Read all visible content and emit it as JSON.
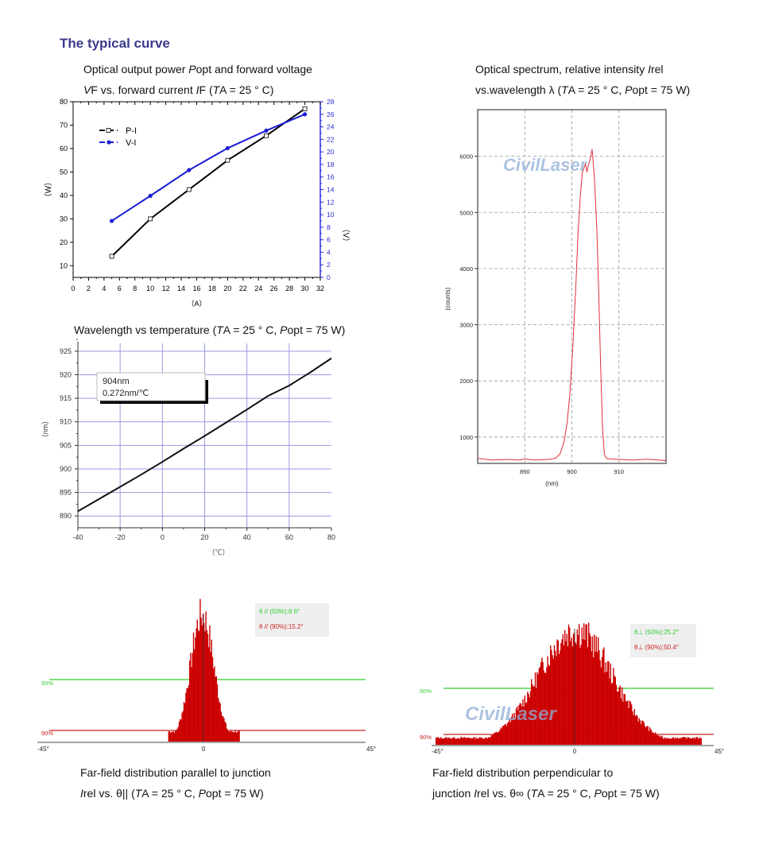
{
  "heading": "The typical curve",
  "watermark": "CivilLaser",
  "captions": {
    "pi_line1_a": "Optical output power ",
    "pi_line1_b": "P",
    "pi_line1_c": "opt and forward voltage",
    "pi_line2_a": "V",
    "pi_line2_b": "F vs. forward current ",
    "pi_line2_c": "I",
    "pi_line2_d": "F (",
    "pi_line2_e": "T",
    "pi_line2_f": "A = 25 ° C)",
    "spec_line1_a": "Optical spectrum, relative intensity ",
    "spec_line1_b": "I",
    "spec_line1_c": "rel",
    "spec_line2_a": "vs.wavelength λ (",
    "spec_line2_b": "T",
    "spec_line2_c": "A = 25 ° C, ",
    "spec_line2_d": "P",
    "spec_line2_e": "opt = 75 W)",
    "wl_a": "Wavelength vs temperature (",
    "wl_b": "T",
    "wl_c": "A = 25 ° C, ",
    "wl_d": "P",
    "wl_e": "opt = 75 W)",
    "par_line1": "Far-field distribution parallel to junction",
    "par_line2_a": "I",
    "par_line2_b": "rel vs. θ|| (",
    "par_line2_c": "T",
    "par_line2_d": "A = 25 ° C, ",
    "par_line2_e": "P",
    "par_line2_f": "opt = 75 W)",
    "perp_line1": "Far-field distribution perpendicular to",
    "perp_line2_a": "junction ",
    "perp_line2_b": "I",
    "perp_line2_c": "rel vs. θ∞ (",
    "perp_line2_d": "T",
    "perp_line2_e": "A = 25 ° C, ",
    "perp_line2_f": "P",
    "perp_line2_g": "opt = 75 W)"
  },
  "chart_data": [
    {
      "id": "pi",
      "type": "line",
      "title": "Optical output power Popt and forward voltage VF vs. forward current IF (TA = 25 ° C)",
      "xlabel": "（A）",
      "ylabel": "（W）",
      "y2label": "（V）",
      "xlim": [
        0,
        32
      ],
      "ylim": [
        5,
        80
      ],
      "y2lim": [
        0,
        28
      ],
      "xticks": [
        0,
        2,
        4,
        6,
        8,
        10,
        12,
        14,
        16,
        18,
        20,
        22,
        24,
        26,
        28,
        30,
        32
      ],
      "yticks": [
        10,
        20,
        30,
        40,
        50,
        60,
        70,
        80
      ],
      "y2ticks": [
        0,
        2,
        4,
        6,
        8,
        10,
        12,
        14,
        16,
        18,
        20,
        22,
        24,
        26,
        28
      ],
      "legend_position": "top-left",
      "series": [
        {
          "name": "P-I",
          "axis": "left",
          "color": "#000000",
          "marker": "open-square",
          "x": [
            5,
            10,
            15,
            20,
            25,
            30
          ],
          "y": [
            14,
            30,
            42.5,
            55,
            65.5,
            77
          ]
        },
        {
          "name": "V-I",
          "axis": "right",
          "color": "#1c1cd6",
          "marker": "filled-circle",
          "x": [
            5,
            10,
            15,
            20,
            25,
            30
          ],
          "y": [
            9,
            13,
            17.1,
            20.6,
            23.4,
            26
          ]
        }
      ]
    },
    {
      "id": "spectrum",
      "type": "line",
      "title": "Optical spectrum, relative intensity Irel vs.wavelength λ (TA = 25 ° C, Popt = 75 W)",
      "xlabel": "(nm)",
      "ylabel": "(counts)",
      "xlim": [
        880,
        920
      ],
      "ylim": [
        530,
        6830
      ],
      "xticks": [
        890,
        900,
        910
      ],
      "yticks": [
        1000,
        2000,
        3000,
        4000,
        5000,
        6000
      ],
      "grid": true,
      "series": [
        {
          "name": "spectrum",
          "color": "#e0303a",
          "x": [
            880,
            883,
            886,
            889,
            890,
            892,
            895,
            896.5,
            897.5,
            898.3,
            899,
            899.6,
            900.2,
            900.8,
            901.3,
            901.8,
            902.2,
            902.6,
            902.9,
            903.2,
            903.5,
            903.9,
            904.3,
            904.8,
            905.3,
            905.7,
            906.1,
            906.5,
            906.9,
            907.3,
            908,
            910,
            913,
            916,
            920
          ],
          "y": [
            620,
            590,
            600,
            590,
            610,
            590,
            600,
            620,
            700,
            900,
            1250,
            1800,
            2600,
            3600,
            4600,
            5300,
            5700,
            5800,
            5860,
            5720,
            5840,
            5950,
            6130,
            5600,
            4700,
            3600,
            2300,
            1200,
            700,
            620,
            610,
            600,
            590,
            605,
            580
          ]
        }
      ]
    },
    {
      "id": "wavelength",
      "type": "line",
      "title": "Wavelength vs temperature (TA = 25 ° C, Popt = 75 W)",
      "xlabel": "（℃）",
      "ylabel": "（nm）",
      "xlim": [
        -40,
        80
      ],
      "ylim": [
        887.5,
        927
      ],
      "xticks": [
        -40,
        -20,
        0,
        20,
        40,
        60,
        80
      ],
      "yticks": [
        890,
        895,
        900,
        905,
        910,
        915,
        920,
        925
      ],
      "grid": true,
      "annotation": [
        "904nm",
        "0.272nm/℃"
      ],
      "series": [
        {
          "name": "wavelength",
          "color": "#111111",
          "x": [
            -40,
            -30,
            -20,
            -10,
            0,
            10,
            20,
            30,
            40,
            50,
            60,
            70,
            80
          ],
          "y": [
            891,
            893.6,
            896.2,
            898.8,
            901.5,
            904.3,
            907,
            909.8,
            912.6,
            915.5,
            917.7,
            920.5,
            923.5
          ]
        }
      ]
    },
    {
      "id": "farfield-parallel",
      "type": "area",
      "title": "Far-field distribution parallel to junction Irel vs. θ|| (TA = 25 ° C, Popt = 75 W)",
      "xlim": [
        -45,
        45
      ],
      "xticks": [
        "-45°",
        "0",
        "45°"
      ],
      "levels": [
        {
          "label": "50%",
          "color": "#33cc33",
          "value": 0.5
        },
        {
          "label": "90%",
          "color": "#cc2222",
          "value": 0.9
        }
      ],
      "legend": [
        "θ // (50%):8.6°",
        "θ // (90%):15.2°"
      ],
      "fwhm_deg": 8.6,
      "width90_deg": 15.2,
      "fill": "#cc0000"
    },
    {
      "id": "farfield-perpendicular",
      "type": "area",
      "title": "Far-field distribution perpendicular to junction Irel vs. θ∞ (TA = 25 ° C, Popt = 75 W)",
      "xlim": [
        -45,
        45
      ],
      "xticks": [
        "-45°",
        "0",
        "45°"
      ],
      "levels": [
        {
          "label": "50%",
          "color": "#33cc33",
          "value": 0.5
        },
        {
          "label": "90%",
          "color": "#cc2222",
          "value": 0.9
        }
      ],
      "legend": [
        "θ⊥ (50%):25.2°",
        "θ⊥ (90%):50.4°"
      ],
      "fwhm_deg": 25.2,
      "width90_deg": 50.4,
      "fill": "#cc0000"
    }
  ]
}
